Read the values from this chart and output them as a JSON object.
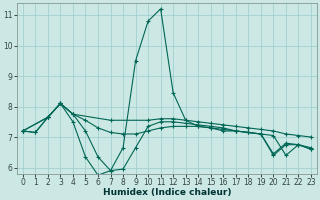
{
  "xlabel": "Humidex (Indice chaleur)",
  "bg_color": "#cce8e4",
  "grid_color": "#99cccc",
  "line_color": "#006655",
  "xlim": [
    -0.5,
    23.5
  ],
  "ylim": [
    5.8,
    11.4
  ],
  "xticks": [
    0,
    1,
    2,
    3,
    4,
    5,
    6,
    7,
    8,
    9,
    10,
    11,
    12,
    13,
    14,
    15,
    16,
    17,
    18,
    19,
    20,
    21,
    22,
    23
  ],
  "yticks": [
    6,
    7,
    8,
    9,
    10,
    11
  ],
  "line1_x": [
    0,
    1,
    2,
    3,
    4,
    5,
    6,
    7,
    8,
    9,
    10,
    11,
    12,
    13,
    14,
    15,
    16,
    17,
    18,
    19,
    20,
    21,
    22,
    23
  ],
  "line1_y": [
    7.2,
    7.15,
    7.65,
    8.1,
    7.5,
    6.35,
    5.75,
    5.9,
    6.65,
    9.5,
    10.8,
    11.2,
    8.45,
    7.55,
    7.35,
    7.3,
    7.2,
    7.2,
    7.15,
    7.1,
    7.05,
    6.4,
    6.75,
    6.6
  ],
  "line2_x": [
    0,
    2,
    3,
    4,
    7,
    10,
    11,
    12,
    13,
    14,
    15,
    16,
    17,
    18,
    19,
    20,
    21,
    22,
    23
  ],
  "line2_y": [
    7.2,
    7.65,
    8.1,
    7.75,
    7.55,
    7.55,
    7.6,
    7.6,
    7.55,
    7.5,
    7.45,
    7.4,
    7.35,
    7.3,
    7.25,
    7.2,
    7.1,
    7.05,
    7.0
  ],
  "line3_x": [
    0,
    1,
    2,
    3,
    4,
    5,
    6,
    7,
    8,
    9,
    10,
    11,
    12,
    13,
    14,
    15,
    16,
    17,
    18,
    19,
    20,
    21,
    22,
    23
  ],
  "line3_y": [
    7.2,
    7.15,
    7.65,
    8.1,
    7.75,
    7.2,
    6.35,
    5.9,
    5.95,
    6.65,
    7.35,
    7.5,
    7.5,
    7.45,
    7.4,
    7.35,
    7.3,
    7.2,
    7.15,
    7.1,
    6.4,
    6.75,
    6.75,
    6.6
  ],
  "line4_x": [
    0,
    2,
    3,
    4,
    5,
    6,
    7,
    8,
    9,
    10,
    11,
    12,
    13,
    14,
    15,
    16,
    17,
    18,
    19,
    20,
    21,
    22,
    23
  ],
  "line4_y": [
    7.2,
    7.65,
    8.1,
    7.75,
    7.55,
    7.3,
    7.15,
    7.1,
    7.1,
    7.2,
    7.3,
    7.35,
    7.35,
    7.35,
    7.3,
    7.25,
    7.2,
    7.15,
    7.1,
    6.45,
    6.8,
    6.75,
    6.65
  ]
}
